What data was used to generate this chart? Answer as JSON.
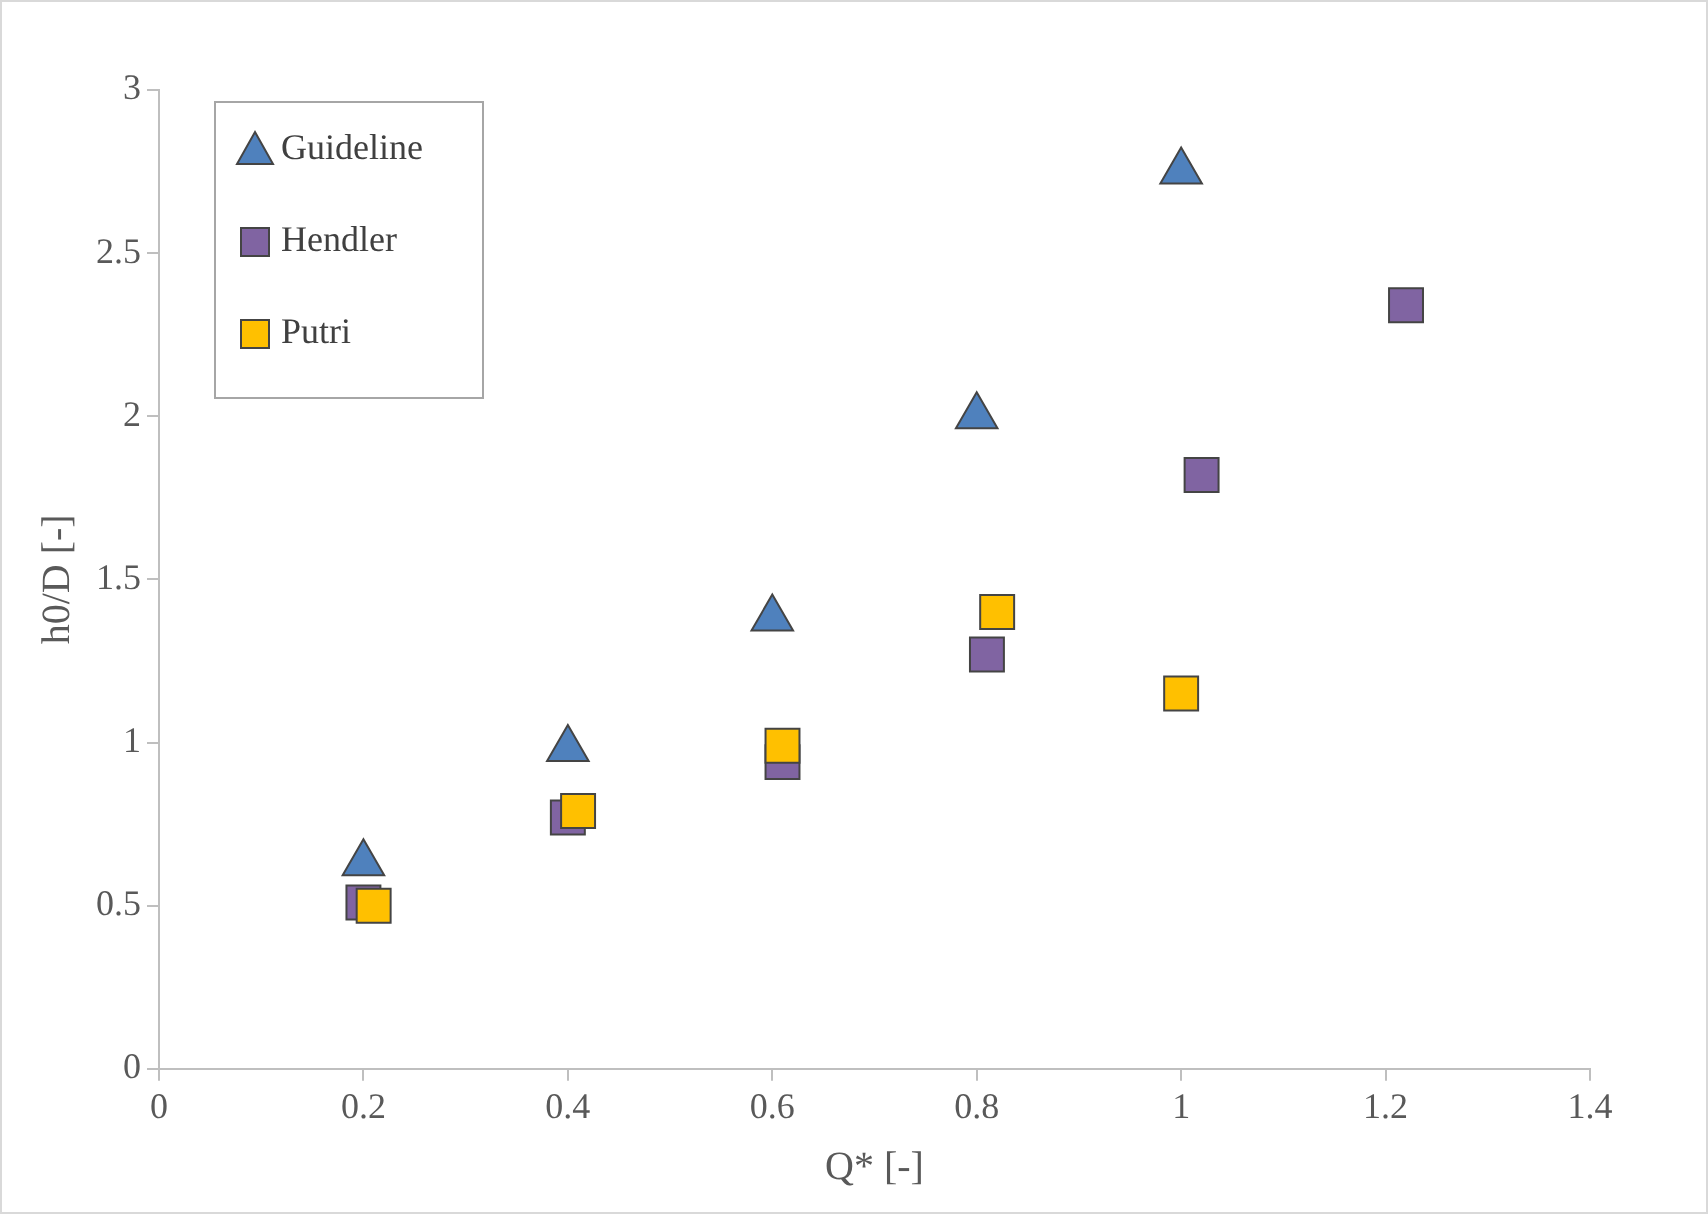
{
  "chart_data": {
    "type": "scatter",
    "xlabel": "Q* [-]",
    "ylabel": "h0/D [-]",
    "xlim": [
      0,
      1.4
    ],
    "xticks": [
      0,
      0.2,
      0.4,
      0.6,
      0.8,
      1,
      1.2,
      1.4
    ],
    "ylim": [
      0,
      3
    ],
    "yticks": [
      0,
      0.5,
      1,
      1.5,
      2,
      2.5,
      3
    ],
    "grid": false,
    "legend": "top left",
    "series": [
      {
        "name": "Guideline",
        "color": "#4f81bd",
        "marker": "triangle",
        "x": [
          0.2,
          0.4,
          0.6,
          0.8,
          1.0
        ],
        "values": [
          0.63,
          0.98,
          1.38,
          2.0,
          2.75
        ]
      },
      {
        "name": "Hendler",
        "color": "#8064a2",
        "marker": "square",
        "x": [
          0.2,
          0.4,
          0.61,
          0.81,
          1.02,
          1.22
        ],
        "values": [
          0.51,
          0.77,
          0.94,
          1.27,
          1.82,
          2.34
        ]
      },
      {
        "name": "Putri",
        "color": "#ffc000",
        "marker": "square",
        "x": [
          0.21,
          0.41,
          0.61,
          0.82,
          1.0
        ],
        "values": [
          0.5,
          0.79,
          0.99,
          1.4,
          1.15
        ]
      }
    ]
  }
}
